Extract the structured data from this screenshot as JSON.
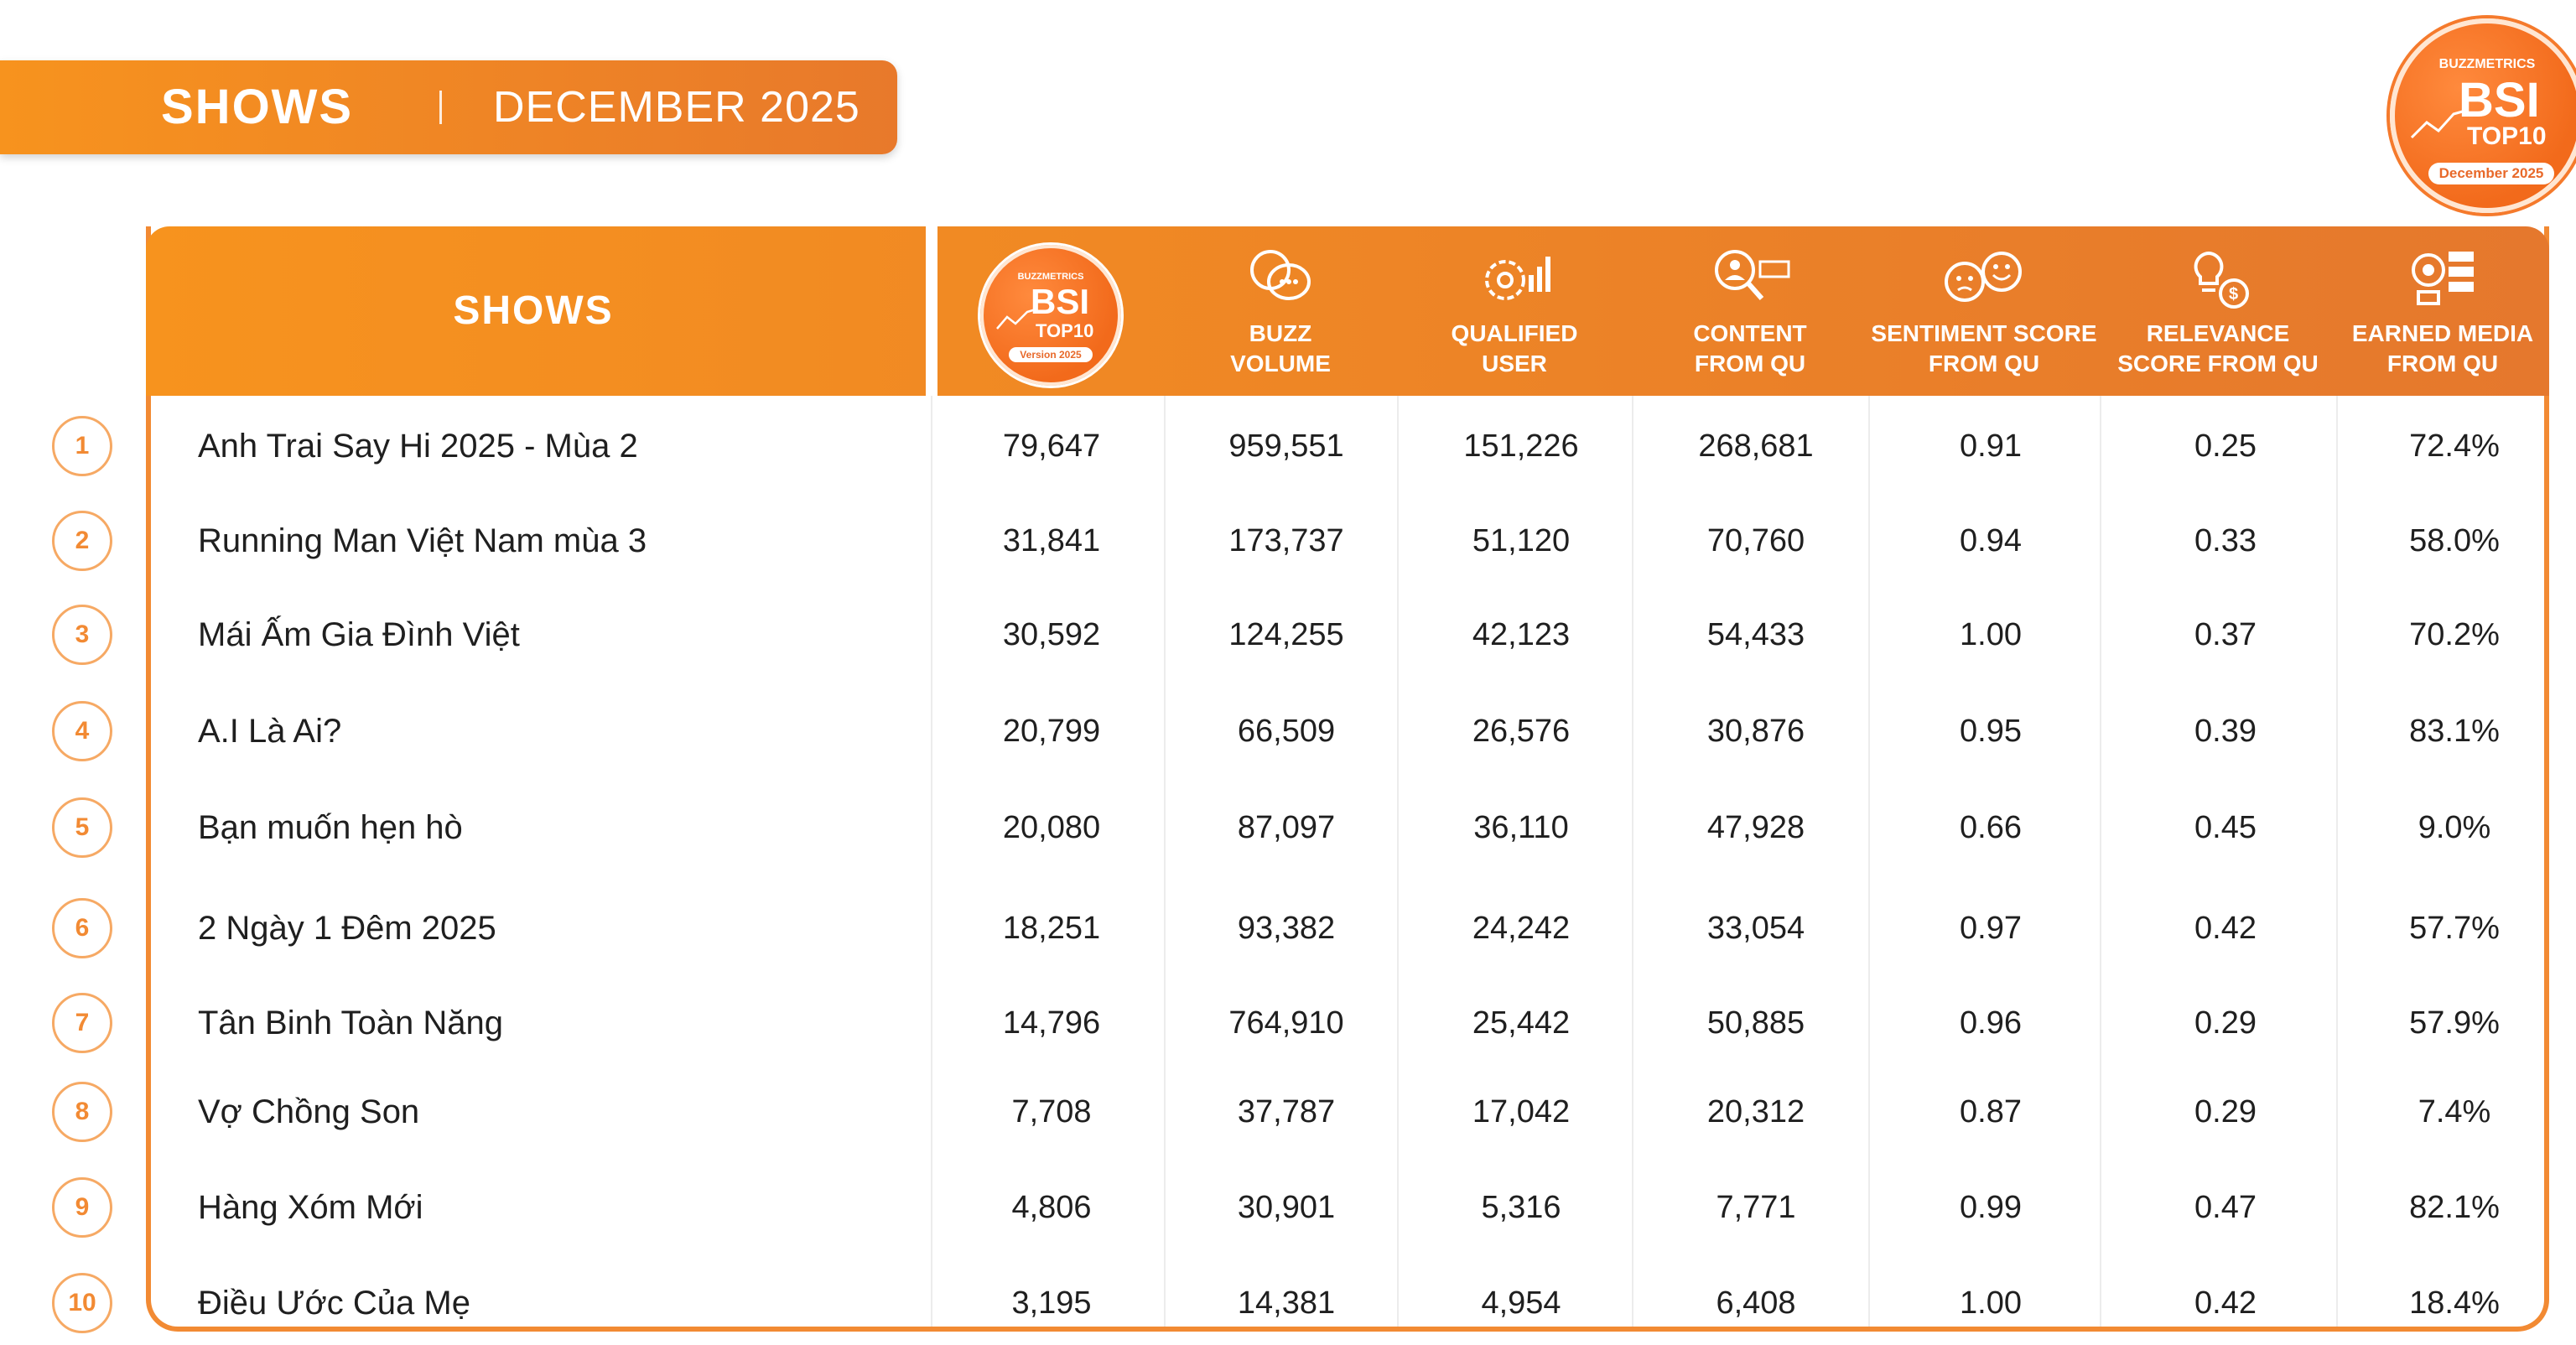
{
  "banner": {
    "title": "SHOWS",
    "date": "DECEMBER 2025"
  },
  "logo_main": {
    "brand": "BUZZMETRICS",
    "bsi": "BSI",
    "top10": "TOP10",
    "period": "December 2025"
  },
  "table": {
    "header": {
      "shows_label": "SHOWS",
      "logo": {
        "brand": "BUZZMETRICS",
        "bsi": "BSI",
        "top10": "TOP10",
        "version": "Version 2025"
      },
      "columns": [
        {
          "line1": "BUZZ",
          "line2": "VOLUME",
          "icon": "chat-bubbles-icon"
        },
        {
          "line1": "QUALIFIED",
          "line2": "USER",
          "icon": "gear-chart-icon"
        },
        {
          "line1": "CONTENT",
          "line2": "FROM QU",
          "icon": "search-person-icon"
        },
        {
          "line1": "SENTIMENT SCORE",
          "line2": "FROM QU",
          "icon": "emoji-faces-icon"
        },
        {
          "line1": "RELEVANCE",
          "line2": "SCORE FROM QU",
          "icon": "lightbulb-coin-icon"
        },
        {
          "line1": "EARNED MEDIA",
          "line2": "FROM QU",
          "icon": "media-megaphone-icon"
        }
      ]
    },
    "rows": [
      {
        "rank": "1",
        "name": "Anh Trai Say Hi 2025 - Mùa 2",
        "bsi": "79,647",
        "buzz": "959,551",
        "qualified": "151,226",
        "content": "268,681",
        "sentiment": "0.91",
        "relevance": "0.25",
        "earned": "72.4%"
      },
      {
        "rank": "2",
        "name": "Running Man Việt Nam mùa 3",
        "bsi": "31,841",
        "buzz": "173,737",
        "qualified": "51,120",
        "content": "70,760",
        "sentiment": "0.94",
        "relevance": "0.33",
        "earned": "58.0%"
      },
      {
        "rank": "3",
        "name": "Mái Ấm Gia Đình Việt",
        "bsi": "30,592",
        "buzz": "124,255",
        "qualified": "42,123",
        "content": "54,433",
        "sentiment": "1.00",
        "relevance": "0.37",
        "earned": "70.2%"
      },
      {
        "rank": "4",
        "name": "A.I Là Ai?",
        "bsi": "20,799",
        "buzz": "66,509",
        "qualified": "26,576",
        "content": "30,876",
        "sentiment": "0.95",
        "relevance": "0.39",
        "earned": "83.1%"
      },
      {
        "rank": "5",
        "name": "Bạn muốn hẹn hò",
        "bsi": "20,080",
        "buzz": "87,097",
        "qualified": "36,110",
        "content": "47,928",
        "sentiment": "0.66",
        "relevance": "0.45",
        "earned": "9.0%"
      },
      {
        "rank": "6",
        "name": "2 Ngày 1 Đêm 2025",
        "bsi": "18,251",
        "buzz": "93,382",
        "qualified": "24,242",
        "content": "33,054",
        "sentiment": "0.97",
        "relevance": "0.42",
        "earned": "57.7%"
      },
      {
        "rank": "7",
        "name": "Tân Binh Toàn Năng",
        "bsi": "14,796",
        "buzz": "764,910",
        "qualified": "25,442",
        "content": "50,885",
        "sentiment": "0.96",
        "relevance": "0.29",
        "earned": "57.9%"
      },
      {
        "rank": "8",
        "name": "Vợ Chồng Son",
        "bsi": "7,708",
        "buzz": "37,787",
        "qualified": "17,042",
        "content": "20,312",
        "sentiment": "0.87",
        "relevance": "0.29",
        "earned": "7.4%"
      },
      {
        "rank": "9",
        "name": "Hàng Xóm Mới",
        "bsi": "4,806",
        "buzz": "30,901",
        "qualified": "5,316",
        "content": "7,771",
        "sentiment": "0.99",
        "relevance": "0.47",
        "earned": "82.1%"
      },
      {
        "rank": "10",
        "name": "Điều Ước Của Mẹ",
        "bsi": "3,195",
        "buzz": "14,381",
        "qualified": "4,954",
        "content": "6,408",
        "sentiment": "1.00",
        "relevance": "0.42",
        "earned": "18.4%"
      }
    ]
  },
  "colors": {
    "accent": "#f28a33",
    "accent_dark": "#e5782d",
    "accent_light": "#f7931e",
    "text": "#1f1f1f"
  }
}
